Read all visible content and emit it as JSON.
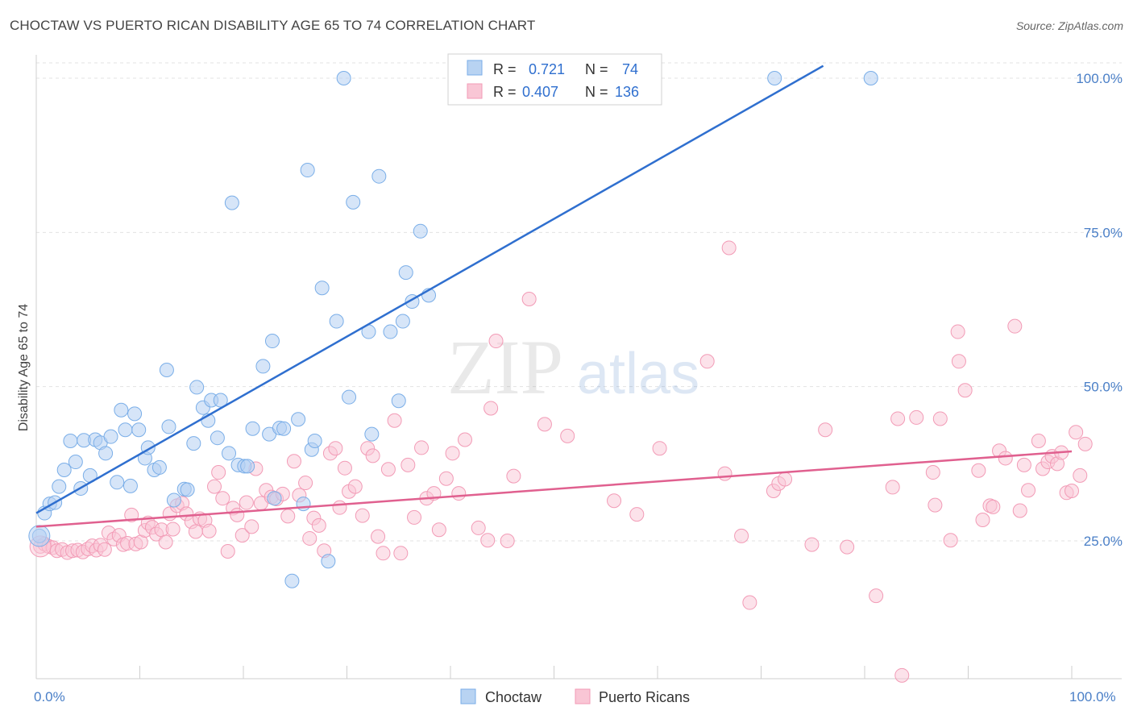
{
  "title": "CHOCTAW VS PUERTO RICAN DISABILITY AGE 65 TO 74 CORRELATION CHART",
  "source": "Source: ZipAtlas.com",
  "watermark": {
    "zip": "ZIP",
    "atlas": "atlas"
  },
  "legend": {
    "r_label": "R =",
    "n_label": "N =",
    "entries": [
      {
        "r": "0.721",
        "n": "74",
        "color": "#7aaee8"
      },
      {
        "r": "0.407",
        "n": "136",
        "color": "#f29bb6"
      }
    ]
  },
  "chart_data": {
    "type": "scatter",
    "title": "CHOCTAW VS PUERTO RICAN DISABILITY AGE 65 TO 74 CORRELATION CHART",
    "xlabel": "",
    "ylabel": "Disability Age 65 to 74",
    "xlim": [
      0,
      100
    ],
    "ylim": [
      0,
      102
    ],
    "x_tick_labels": [
      "0.0%",
      "100.0%"
    ],
    "y_ticks": [
      25,
      50,
      75,
      100
    ],
    "y_tick_labels": [
      "25.0%",
      "50.0%",
      "75.0%",
      "100.0%"
    ],
    "grid": true,
    "legend_position": "top-center",
    "series": [
      {
        "name": "Choctaw",
        "color": "#7aaee8",
        "line_color": "#2f6fcf",
        "trend": {
          "x": [
            0,
            76
          ],
          "y": [
            29.5,
            102
          ]
        },
        "points": [
          [
            0.3,
            25.8
          ],
          [
            0.8,
            29.5
          ],
          [
            1.3,
            31
          ],
          [
            1.8,
            31.2
          ],
          [
            2.2,
            33.8
          ],
          [
            2.7,
            36.5
          ],
          [
            3.3,
            41.2
          ],
          [
            3.8,
            37.8
          ],
          [
            4.3,
            33.5
          ],
          [
            4.6,
            41.3
          ],
          [
            5.2,
            35.6
          ],
          [
            5.7,
            41.4
          ],
          [
            6.2,
            40.9
          ],
          [
            6.7,
            39.2
          ],
          [
            7.2,
            41.9
          ],
          [
            7.8,
            34.5
          ],
          [
            8.2,
            46.2
          ],
          [
            8.6,
            43
          ],
          [
            9.1,
            33.9
          ],
          [
            9.5,
            45.6
          ],
          [
            9.9,
            43
          ],
          [
            10.5,
            38.4
          ],
          [
            10.8,
            40.1
          ],
          [
            11.4,
            36.5
          ],
          [
            11.9,
            36.9
          ],
          [
            12.6,
            52.7
          ],
          [
            12.8,
            43.5
          ],
          [
            13.3,
            31.6
          ],
          [
            14.3,
            33.4
          ],
          [
            14.6,
            33.3
          ],
          [
            15.2,
            40.8
          ],
          [
            15.5,
            49.9
          ],
          [
            16.1,
            46.6
          ],
          [
            16.6,
            44.5
          ],
          [
            16.9,
            47.8
          ],
          [
            17.5,
            41.7
          ],
          [
            17.8,
            47.8
          ],
          [
            18.6,
            39.2
          ],
          [
            18.9,
            79.8
          ],
          [
            19.5,
            37.3
          ],
          [
            20.1,
            37.1
          ],
          [
            20.4,
            37.1
          ],
          [
            20.9,
            43.2
          ],
          [
            21.9,
            53.3
          ],
          [
            22.5,
            42.3
          ],
          [
            22.8,
            57.4
          ],
          [
            23.0,
            31.9
          ],
          [
            23.5,
            43.3
          ],
          [
            23.9,
            43.2
          ],
          [
            24.7,
            18.5
          ],
          [
            25.3,
            44.7
          ],
          [
            25.8,
            31
          ],
          [
            26.2,
            85.1
          ],
          [
            26.6,
            39.8
          ],
          [
            26.9,
            41.2
          ],
          [
            27.6,
            66
          ],
          [
            28.2,
            21.7
          ],
          [
            29.0,
            60.6
          ],
          [
            29.7,
            100
          ],
          [
            30.2,
            48.3
          ],
          [
            30.6,
            79.9
          ],
          [
            32.1,
            58.9
          ],
          [
            32.4,
            42.3
          ],
          [
            33.1,
            84.1
          ],
          [
            34.2,
            58.9
          ],
          [
            35.4,
            60.6
          ],
          [
            35.0,
            47.7
          ],
          [
            35.7,
            68.5
          ],
          [
            36.3,
            63.8
          ],
          [
            37.9,
            64.8
          ],
          [
            37.1,
            75.2
          ],
          [
            43.1,
            100.4
          ],
          [
            71.3,
            100
          ],
          [
            80.6,
            100
          ]
        ]
      },
      {
        "name": "Puerto Ricans",
        "color": "#f29bb6",
        "line_color": "#e0608f",
        "trend": {
          "x": [
            0,
            100
          ],
          "y": [
            27.3,
            39.5
          ]
        },
        "points": [
          [
            0.4,
            24.1
          ],
          [
            0.8,
            24.5
          ],
          [
            1.2,
            24.1
          ],
          [
            1.6,
            23.9
          ],
          [
            2,
            23.4
          ],
          [
            2.5,
            23.6
          ],
          [
            3,
            23.1
          ],
          [
            3.5,
            23.4
          ],
          [
            4,
            23.5
          ],
          [
            4.5,
            23.2
          ],
          [
            5,
            23.7
          ],
          [
            5.4,
            24.2
          ],
          [
            5.8,
            23.5
          ],
          [
            6.2,
            24.3
          ],
          [
            6.6,
            23.6
          ],
          [
            7,
            26.3
          ],
          [
            7.5,
            25.3
          ],
          [
            8,
            25.9
          ],
          [
            8.4,
            24.4
          ],
          [
            8.8,
            24.6
          ],
          [
            9.2,
            29.2
          ],
          [
            9.6,
            24.5
          ],
          [
            10.1,
            24.8
          ],
          [
            10.5,
            26.7
          ],
          [
            10.8,
            27.9
          ],
          [
            11.2,
            27.2
          ],
          [
            11.6,
            26.1
          ],
          [
            12.1,
            26.8
          ],
          [
            12.5,
            24.8
          ],
          [
            12.9,
            29.4
          ],
          [
            13.2,
            26.9
          ],
          [
            13.6,
            30.7
          ],
          [
            14.1,
            31.1
          ],
          [
            14.5,
            29.4
          ],
          [
            15,
            28.1
          ],
          [
            15.4,
            26.5
          ],
          [
            15.8,
            28.6
          ],
          [
            16.3,
            28.3
          ],
          [
            16.7,
            26.6
          ],
          [
            17.2,
            33.8
          ],
          [
            17.6,
            36.1
          ],
          [
            18,
            31.9
          ],
          [
            18.5,
            23.3
          ],
          [
            19,
            30.3
          ],
          [
            19.4,
            29.2
          ],
          [
            19.9,
            25.9
          ],
          [
            20.3,
            31.2
          ],
          [
            20.8,
            27.3
          ],
          [
            21.2,
            36.7
          ],
          [
            21.7,
            31.1
          ],
          [
            22.2,
            33.2
          ],
          [
            22.7,
            32.1
          ],
          [
            23.2,
            31.8
          ],
          [
            23.8,
            32.6
          ],
          [
            24.3,
            29
          ],
          [
            24.9,
            37.9
          ],
          [
            25.4,
            32.4
          ],
          [
            26,
            34.4
          ],
          [
            26.4,
            25.4
          ],
          [
            26.8,
            28.7
          ],
          [
            27.3,
            27.5
          ],
          [
            27.8,
            23.4
          ],
          [
            28.4,
            39.2
          ],
          [
            28.9,
            40
          ],
          [
            29.3,
            30.4
          ],
          [
            29.8,
            36.8
          ],
          [
            30.2,
            33
          ],
          [
            30.8,
            33.8
          ],
          [
            31.5,
            29.1
          ],
          [
            32,
            40
          ],
          [
            32.5,
            38.8
          ],
          [
            33,
            25.7
          ],
          [
            33.5,
            23
          ],
          [
            34,
            36.6
          ],
          [
            34.6,
            44.5
          ],
          [
            35.2,
            23
          ],
          [
            35.9,
            37.3
          ],
          [
            36.5,
            28.8
          ],
          [
            37.2,
            40.1
          ],
          [
            37.7,
            31.9
          ],
          [
            38.4,
            32.7
          ],
          [
            38.9,
            26.8
          ],
          [
            39.6,
            35.1
          ],
          [
            40.2,
            39.2
          ],
          [
            40.8,
            32.7
          ],
          [
            41.4,
            41.4
          ],
          [
            42.7,
            27.1
          ],
          [
            43.6,
            25.1
          ],
          [
            43.9,
            46.5
          ],
          [
            44.4,
            57.4
          ],
          [
            45.5,
            25
          ],
          [
            46.1,
            35.5
          ],
          [
            47.6,
            64.2
          ],
          [
            49.1,
            43.9
          ],
          [
            51.3,
            42
          ],
          [
            55.8,
            31.5
          ],
          [
            58,
            29.3
          ],
          [
            60.2,
            40
          ],
          [
            64.8,
            54.1
          ],
          [
            66.5,
            35.9
          ],
          [
            66.9,
            72.5
          ],
          [
            68.1,
            25.8
          ],
          [
            68.9,
            15
          ],
          [
            71.2,
            33.1
          ],
          [
            71.7,
            34.3
          ],
          [
            72.3,
            35
          ],
          [
            74.9,
            24.4
          ],
          [
            76.2,
            43
          ],
          [
            78.3,
            24
          ],
          [
            81.1,
            16.1
          ],
          [
            82.7,
            33.7
          ],
          [
            83.6,
            3.2
          ],
          [
            83.2,
            44.8
          ],
          [
            85,
            45
          ],
          [
            86.6,
            36.1
          ],
          [
            86.8,
            30.8
          ],
          [
            87.3,
            44.8
          ],
          [
            88.3,
            25.1
          ],
          [
            89.1,
            54.1
          ],
          [
            89.7,
            49.4
          ],
          [
            89,
            58.9
          ],
          [
            91,
            36.4
          ],
          [
            91.4,
            28.4
          ],
          [
            92.1,
            30.7
          ],
          [
            92.4,
            30.5
          ],
          [
            93,
            39.6
          ],
          [
            93.6,
            38.4
          ],
          [
            94.5,
            59.8
          ],
          [
            95,
            29.9
          ],
          [
            95.4,
            37.3
          ],
          [
            95.8,
            33.2
          ],
          [
            96.8,
            41.2
          ],
          [
            97.2,
            36.7
          ],
          [
            97.7,
            37.8
          ],
          [
            98.1,
            38.7
          ],
          [
            98.6,
            37.5
          ],
          [
            99,
            39.3
          ],
          [
            99.5,
            32.8
          ],
          [
            100,
            33.1
          ],
          [
            100.4,
            42.6
          ],
          [
            100.8,
            35.6
          ],
          [
            101.3,
            40.7
          ]
        ]
      }
    ]
  }
}
